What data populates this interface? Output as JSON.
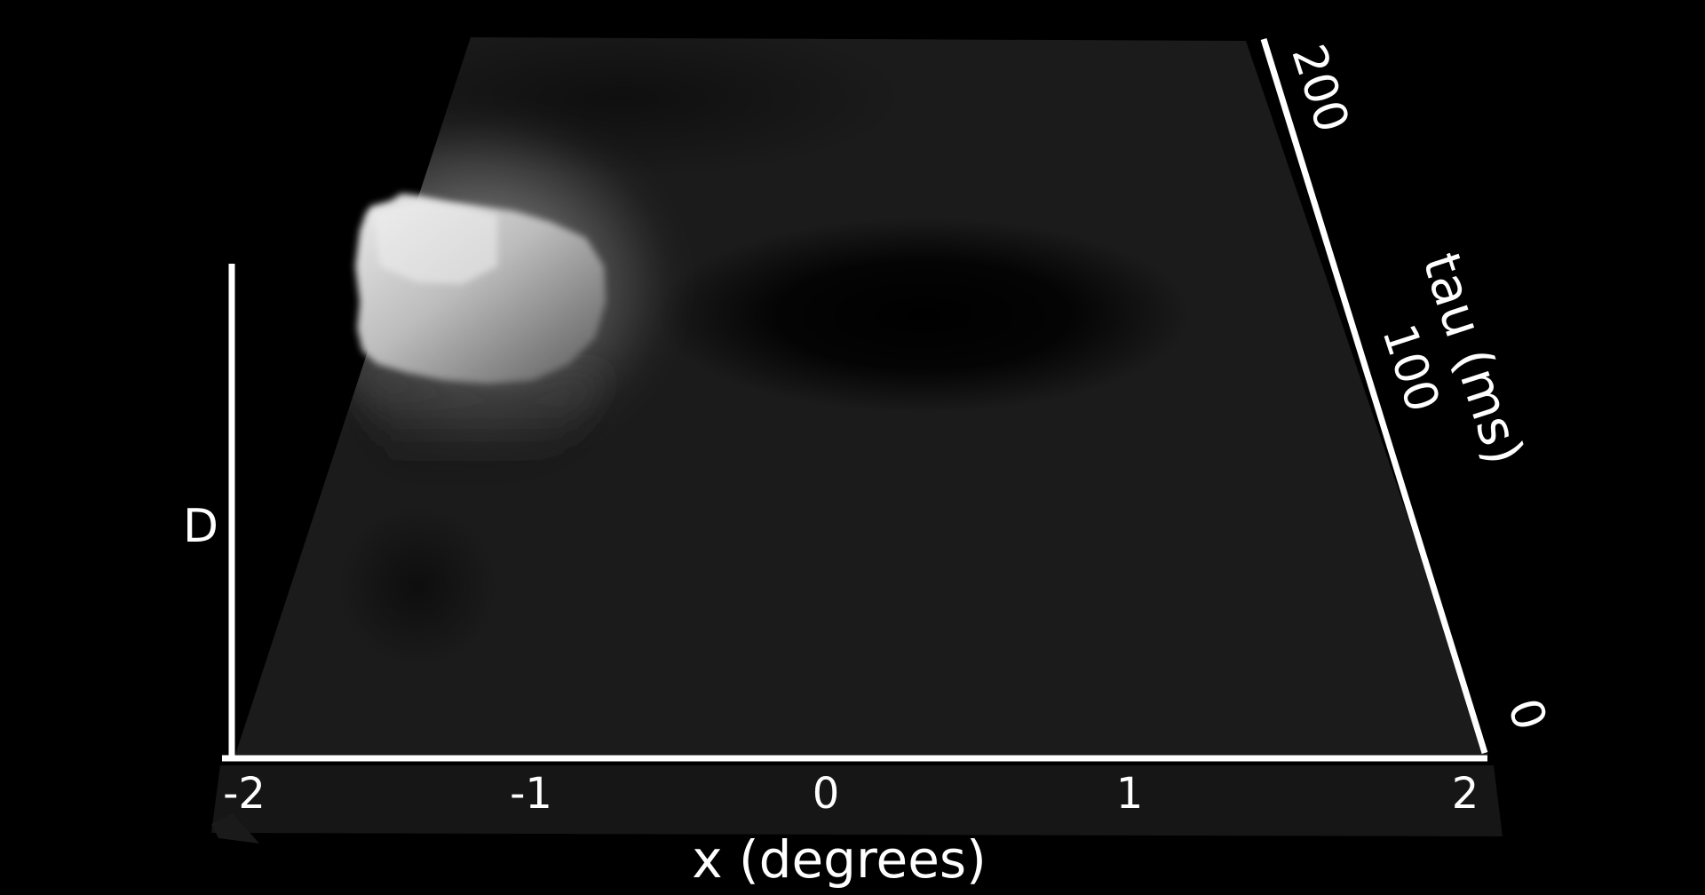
{
  "chart_data": {
    "type": "surface",
    "title": "",
    "xlabel": "x (degrees)",
    "ylabel": "tau (ms)",
    "zlabel": "D",
    "x_ticks": [
      "-2",
      "-1",
      "0",
      "1",
      "2"
    ],
    "y_ticks": [
      "0",
      "100",
      "200"
    ],
    "xlim": [
      -2,
      2
    ],
    "ylim": [
      0,
      200
    ],
    "colormap": "grayscale",
    "surface_base_color": "#1a1a1a",
    "features": [
      {
        "kind": "peak",
        "x": -1.4,
        "tau": 110,
        "relative_height": 1.0,
        "color": "#e6e6e6"
      },
      {
        "kind": "trough",
        "x": 0.5,
        "tau": 120,
        "relative_height": -0.3,
        "color": "#000000"
      },
      {
        "kind": "trough",
        "x": -1.3,
        "tau": 30,
        "relative_height": -0.1,
        "color": "#0c0c0c"
      }
    ]
  }
}
